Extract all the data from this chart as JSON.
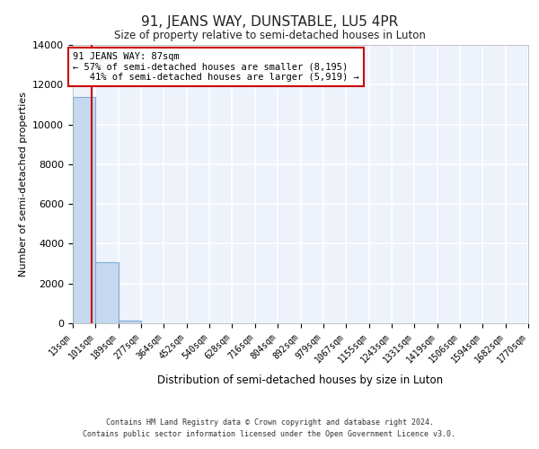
{
  "title": "91, JEANS WAY, DUNSTABLE, LU5 4PR",
  "subtitle": "Size of property relative to semi-detached houses in Luton",
  "xlabel": "Distribution of semi-detached houses by size in Luton",
  "ylabel": "Number of semi-detached properties",
  "property_size": 87,
  "smaller_pct": 57,
  "smaller_count": 8195,
  "larger_pct": 41,
  "larger_count": 5919,
  "bin_edges": [
    13,
    101,
    189,
    277,
    364,
    452,
    540,
    628,
    716,
    804,
    892,
    979,
    1067,
    1155,
    1243,
    1331,
    1419,
    1506,
    1594,
    1682,
    1770
  ],
  "bin_counts": [
    11400,
    3050,
    150,
    0,
    0,
    0,
    0,
    0,
    0,
    0,
    0,
    0,
    0,
    0,
    0,
    0,
    0,
    0,
    0,
    0
  ],
  "bar_color": "#c5d8f0",
  "bar_edge_color": "#7bafd4",
  "red_line_color": "#cc0000",
  "annotation_box_color": "#ffffff",
  "annotation_box_edge": "#cc0000",
  "ylim": [
    0,
    14000
  ],
  "yticks": [
    0,
    2000,
    4000,
    6000,
    8000,
    10000,
    12000,
    14000
  ],
  "footer_line1": "Contains HM Land Registry data © Crown copyright and database right 2024.",
  "footer_line2": "Contains public sector information licensed under the Open Government Licence v3.0.",
  "background_color": "#edf2fb",
  "grid_color": "#ffffff",
  "fig_background": "#ffffff"
}
